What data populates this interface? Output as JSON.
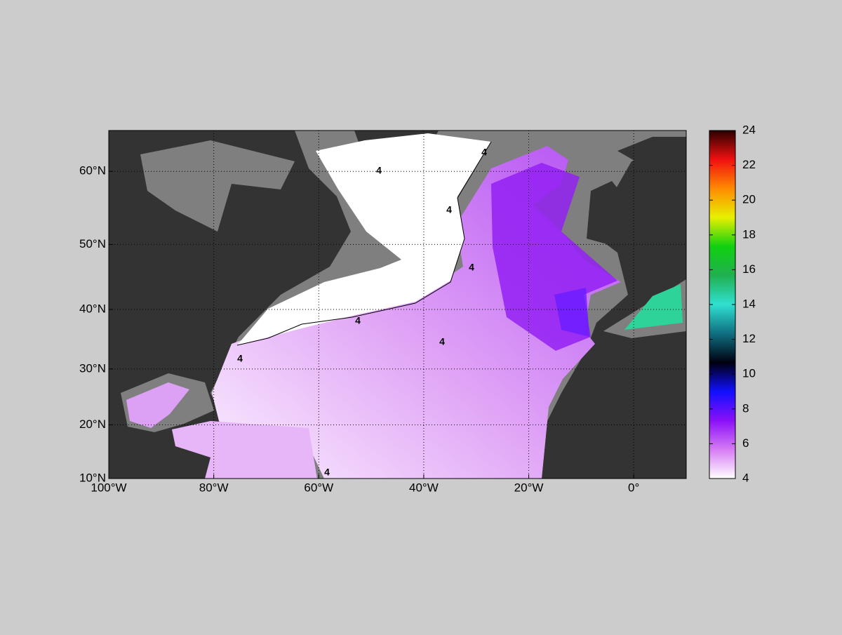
{
  "map": {
    "projection": "miller",
    "xlim": [
      -100,
      10
    ],
    "xticks": [
      {
        "value": -100,
        "label": "100°W"
      },
      {
        "value": -80,
        "label": "80°W"
      },
      {
        "value": -60,
        "label": "60°W"
      },
      {
        "value": -40,
        "label": "40°W"
      },
      {
        "value": -20,
        "label": "20°W"
      },
      {
        "value": 0,
        "label": "0°"
      }
    ],
    "ylim": [
      10,
      65
    ],
    "yticks": [
      {
        "value": 10,
        "label": "10°N"
      },
      {
        "value": 20,
        "label": "20°N"
      },
      {
        "value": 30,
        "label": "30°N"
      },
      {
        "value": 40,
        "label": "40°N"
      },
      {
        "value": 50,
        "label": "50°N"
      },
      {
        "value": 60,
        "label": "60°N"
      }
    ],
    "grid": true,
    "contour_level": 4,
    "colorbar": {
      "clim": [
        4,
        24
      ],
      "ticks": [
        4,
        6,
        8,
        10,
        12,
        14,
        16,
        18,
        20,
        22,
        24
      ],
      "colormap": [
        "#ffffff",
        "#d67cf4",
        "#8a10f8",
        "#1010ff",
        "#000010",
        "#0e6f80",
        "#30e0d0",
        "#20b050",
        "#10d010",
        "#e8f000",
        "#ff8a00",
        "#f01010",
        "#2a0000"
      ]
    }
  }
}
